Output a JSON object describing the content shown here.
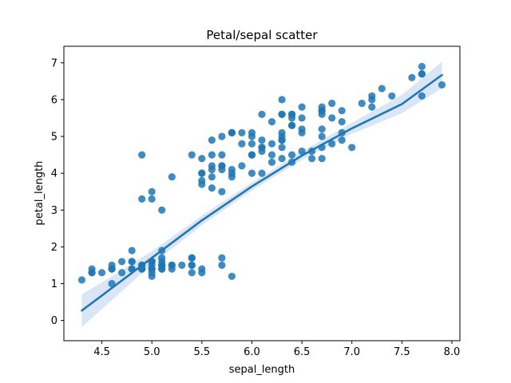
{
  "chart_data": {
    "type": "scatter",
    "title": "Petal/sepal scatter",
    "xlabel": "sepal_length",
    "ylabel": "petal_length",
    "xlim": [
      4.12,
      8.08
    ],
    "ylim": [
      -0.55,
      7.45
    ],
    "xticks": [
      4.5,
      5.0,
      5.5,
      6.0,
      6.5,
      7.0,
      7.5,
      8.0
    ],
    "xtick_labels": [
      "4.5",
      "5.0",
      "5.5",
      "6.0",
      "6.5",
      "7.0",
      "7.5",
      "8.0"
    ],
    "yticks": [
      0,
      1,
      2,
      3,
      4,
      5,
      6,
      7
    ],
    "ytick_labels": [
      "0",
      "1",
      "2",
      "3",
      "4",
      "5",
      "6",
      "7"
    ],
    "grid": false,
    "legend": "none",
    "colors": {
      "points": "#1f77b4",
      "fit_line": "#1f77b4",
      "ci_band": "#aec7e8"
    },
    "points": [
      [
        5.1,
        1.4
      ],
      [
        4.9,
        1.4
      ],
      [
        4.7,
        1.3
      ],
      [
        4.6,
        1.5
      ],
      [
        5.0,
        1.4
      ],
      [
        5.4,
        1.7
      ],
      [
        4.6,
        1.4
      ],
      [
        5.0,
        1.5
      ],
      [
        4.4,
        1.4
      ],
      [
        4.9,
        1.5
      ],
      [
        5.4,
        1.5
      ],
      [
        4.8,
        1.6
      ],
      [
        4.8,
        1.4
      ],
      [
        4.3,
        1.1
      ],
      [
        5.8,
        1.2
      ],
      [
        5.7,
        1.5
      ],
      [
        5.4,
        1.3
      ],
      [
        5.1,
        1.4
      ],
      [
        5.7,
        1.7
      ],
      [
        5.1,
        1.5
      ],
      [
        5.4,
        1.7
      ],
      [
        5.1,
        1.5
      ],
      [
        4.6,
        1.0
      ],
      [
        5.1,
        1.7
      ],
      [
        4.8,
        1.9
      ],
      [
        5.0,
        1.6
      ],
      [
        5.0,
        1.6
      ],
      [
        5.2,
        1.5
      ],
      [
        5.2,
        1.4
      ],
      [
        4.7,
        1.6
      ],
      [
        4.8,
        1.6
      ],
      [
        5.4,
        1.5
      ],
      [
        5.2,
        1.5
      ],
      [
        5.5,
        1.4
      ],
      [
        4.9,
        1.5
      ],
      [
        5.0,
        1.2
      ],
      [
        5.5,
        1.3
      ],
      [
        4.9,
        1.4
      ],
      [
        4.4,
        1.3
      ],
      [
        5.1,
        1.5
      ],
      [
        5.0,
        1.3
      ],
      [
        4.5,
        1.3
      ],
      [
        4.4,
        1.3
      ],
      [
        5.0,
        1.6
      ],
      [
        5.1,
        1.9
      ],
      [
        4.8,
        1.4
      ],
      [
        5.1,
        1.6
      ],
      [
        4.6,
        1.4
      ],
      [
        5.3,
        1.5
      ],
      [
        5.0,
        1.4
      ],
      [
        7.0,
        4.7
      ],
      [
        6.4,
        4.5
      ],
      [
        6.9,
        4.9
      ],
      [
        5.5,
        4.0
      ],
      [
        6.5,
        4.6
      ],
      [
        5.7,
        4.5
      ],
      [
        6.3,
        4.7
      ],
      [
        4.9,
        3.3
      ],
      [
        6.6,
        4.6
      ],
      [
        5.2,
        3.9
      ],
      [
        5.0,
        3.5
      ],
      [
        5.9,
        4.2
      ],
      [
        6.0,
        4.0
      ],
      [
        6.1,
        4.7
      ],
      [
        5.6,
        3.6
      ],
      [
        6.7,
        4.4
      ],
      [
        5.6,
        4.5
      ],
      [
        5.8,
        4.1
      ],
      [
        6.2,
        4.5
      ],
      [
        5.6,
        3.9
      ],
      [
        5.9,
        4.8
      ],
      [
        6.1,
        4.0
      ],
      [
        6.3,
        4.9
      ],
      [
        6.1,
        4.7
      ],
      [
        6.4,
        4.3
      ],
      [
        6.6,
        4.4
      ],
      [
        6.8,
        4.8
      ],
      [
        6.7,
        5.0
      ],
      [
        6.0,
        4.5
      ],
      [
        5.7,
        3.5
      ],
      [
        5.5,
        3.8
      ],
      [
        5.5,
        3.7
      ],
      [
        5.8,
        3.9
      ],
      [
        6.0,
        5.1
      ],
      [
        5.4,
        4.5
      ],
      [
        6.0,
        4.5
      ],
      [
        6.7,
        4.7
      ],
      [
        6.3,
        4.4
      ],
      [
        5.6,
        4.1
      ],
      [
        5.5,
        4.0
      ],
      [
        5.5,
        4.4
      ],
      [
        6.1,
        4.6
      ],
      [
        5.8,
        4.0
      ],
      [
        5.0,
        3.3
      ],
      [
        5.6,
        4.2
      ],
      [
        5.7,
        4.2
      ],
      [
        5.7,
        4.2
      ],
      [
        6.2,
        4.3
      ],
      [
        5.1,
        3.0
      ],
      [
        5.7,
        4.1
      ],
      [
        6.3,
        6.0
      ],
      [
        5.8,
        5.1
      ],
      [
        7.1,
        5.9
      ],
      [
        6.3,
        5.6
      ],
      [
        6.5,
        5.8
      ],
      [
        7.6,
        6.6
      ],
      [
        4.9,
        4.5
      ],
      [
        7.3,
        6.3
      ],
      [
        6.7,
        5.8
      ],
      [
        7.2,
        6.1
      ],
      [
        6.5,
        5.1
      ],
      [
        6.4,
        5.3
      ],
      [
        6.8,
        5.5
      ],
      [
        5.7,
        5.0
      ],
      [
        5.8,
        5.1
      ],
      [
        6.4,
        5.3
      ],
      [
        6.5,
        5.5
      ],
      [
        7.7,
        6.7
      ],
      [
        7.7,
        6.9
      ],
      [
        6.0,
        5.0
      ],
      [
        6.9,
        5.7
      ],
      [
        5.6,
        4.9
      ],
      [
        7.7,
        6.7
      ],
      [
        6.3,
        4.9
      ],
      [
        6.7,
        5.7
      ],
      [
        7.2,
        6.0
      ],
      [
        6.2,
        4.8
      ],
      [
        6.1,
        4.9
      ],
      [
        6.4,
        5.6
      ],
      [
        7.2,
        5.8
      ],
      [
        7.4,
        6.1
      ],
      [
        7.9,
        6.4
      ],
      [
        6.4,
        5.6
      ],
      [
        6.3,
        5.1
      ],
      [
        6.1,
        5.6
      ],
      [
        7.7,
        6.1
      ],
      [
        6.3,
        5.6
      ],
      [
        6.4,
        5.5
      ],
      [
        6.0,
        4.8
      ],
      [
        6.9,
        5.4
      ],
      [
        6.7,
        5.6
      ],
      [
        6.9,
        5.1
      ],
      [
        5.8,
        5.1
      ],
      [
        6.8,
        5.9
      ],
      [
        6.7,
        5.7
      ],
      [
        6.7,
        5.2
      ],
      [
        6.3,
        5.0
      ],
      [
        6.5,
        5.2
      ],
      [
        6.2,
        5.4
      ],
      [
        5.9,
        5.1
      ]
    ],
    "fit": {
      "x": [
        4.3,
        4.6,
        5.0,
        5.5,
        6.0,
        6.5,
        7.0,
        7.5,
        7.9
      ],
      "y": [
        0.27,
        0.88,
        1.7,
        2.72,
        3.64,
        4.48,
        5.22,
        5.88,
        6.67
      ],
      "lo": [
        -0.18,
        0.55,
        1.52,
        2.59,
        3.53,
        4.36,
        5.07,
        5.63,
        6.31
      ],
      "hi": [
        0.71,
        1.2,
        1.88,
        2.85,
        3.75,
        4.6,
        5.37,
        6.13,
        7.03
      ]
    }
  }
}
